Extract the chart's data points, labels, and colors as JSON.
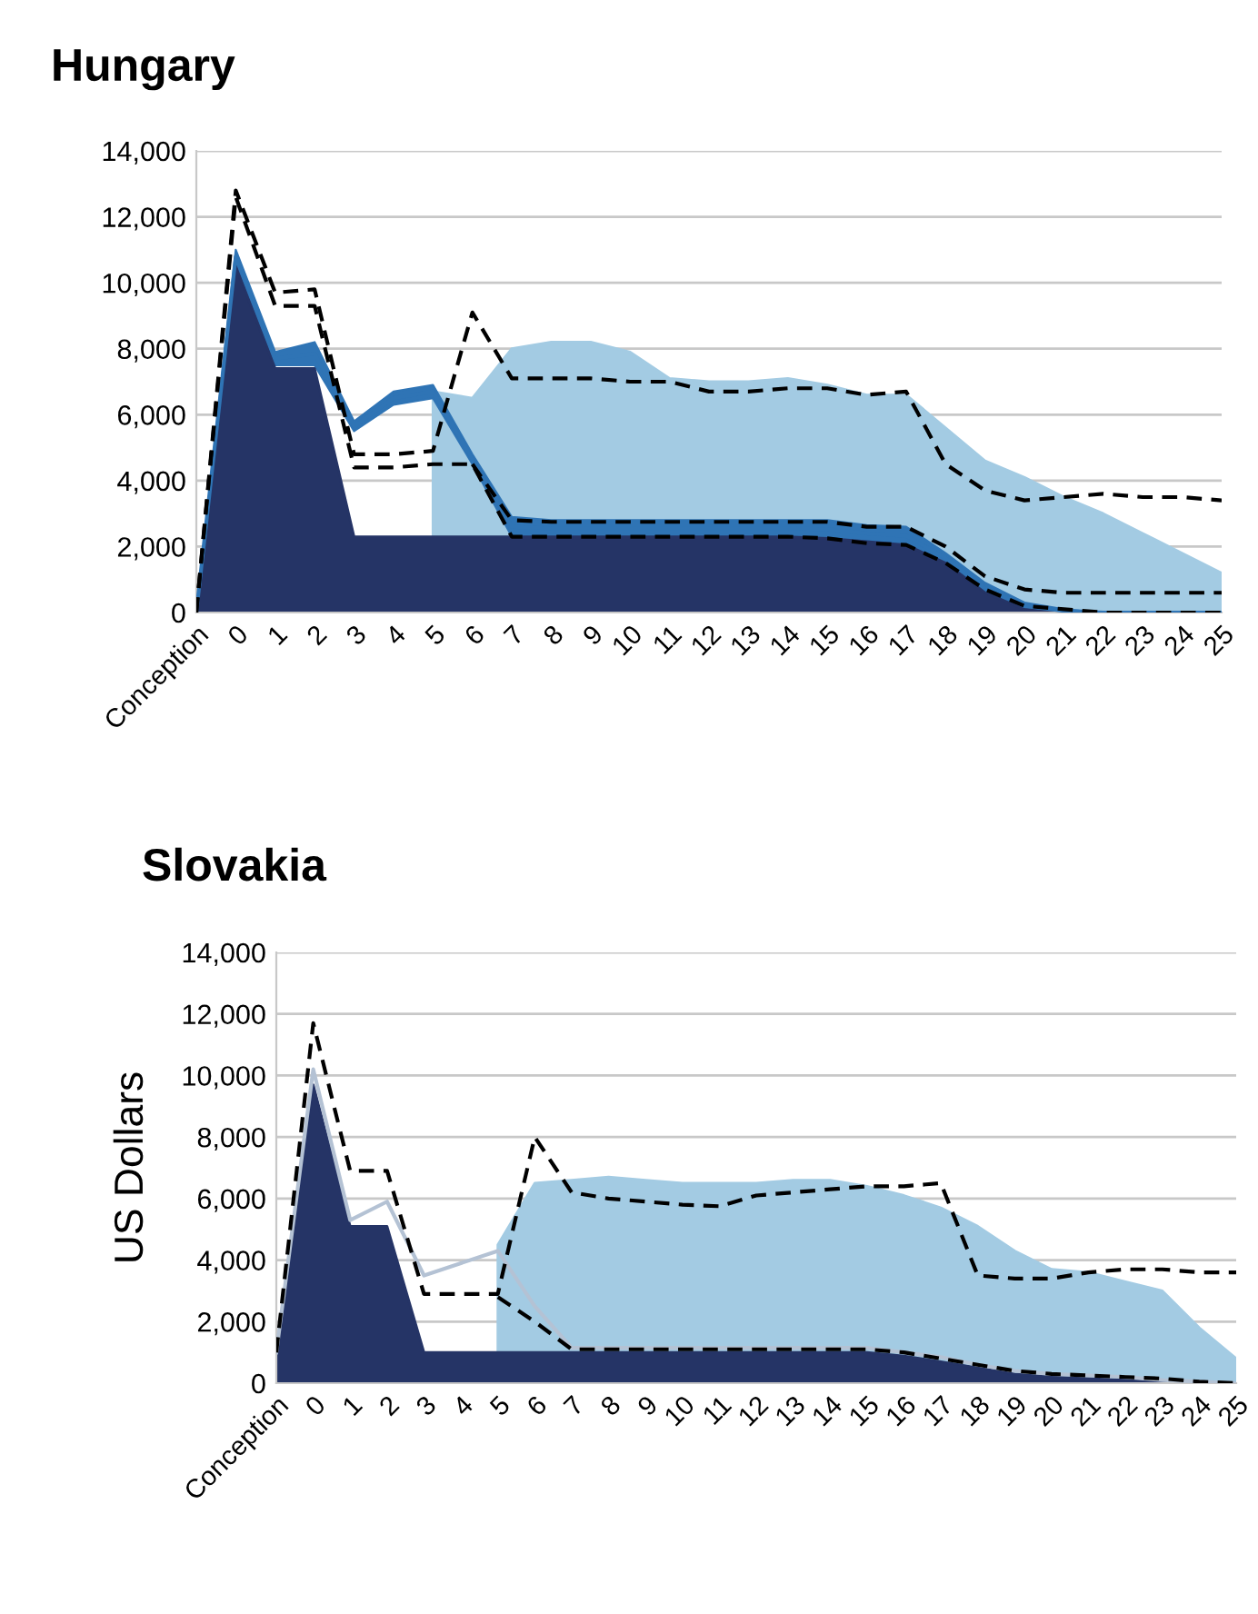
{
  "chart_data": [
    {
      "type": "area",
      "title": "Hungary",
      "categories": [
        "Conception",
        "0",
        "1",
        "2",
        "3",
        "4",
        "5",
        "6",
        "7",
        "8",
        "9",
        "10",
        "11",
        "12",
        "13",
        "14",
        "15",
        "16",
        "17",
        "18",
        "19",
        "20",
        "21",
        "22",
        "23",
        "24",
        "25"
      ],
      "ylim": [
        0,
        14000
      ],
      "yticks": [
        0,
        {
          "value": 2000,
          "label": "2,000"
        },
        {
          "value": 4000,
          "label": "4,000"
        },
        {
          "value": 6000,
          "label": "6,000"
        },
        {
          "value": 8000,
          "label": "8,000"
        },
        {
          "value": 10000,
          "label": "10,000"
        },
        {
          "value": 12000,
          "label": "12,000"
        },
        {
          "value": 14000,
          "label": "14,000"
        }
      ],
      "grid": "y",
      "series": [
        {
          "color": "#a3cbe3",
          "values": [
            null,
            null,
            null,
            null,
            null,
            null,
            6700,
            6500,
            8000,
            8200,
            8200,
            7900,
            7100,
            7000,
            7000,
            7100,
            6900,
            6600,
            6600,
            5600,
            4600,
            4100,
            3500,
            3000,
            2400,
            1800,
            1200
          ]
        },
        {
          "type": "line",
          "color": "#2f74b5",
          "values": [
            0,
            10800,
            7700,
            7850,
            5650,
            6500,
            6700,
            4650,
            2600,
            2550,
            2550,
            2550,
            2550,
            2550,
            2550,
            2550,
            2525,
            2400,
            2325,
            1650,
            750,
            200,
            50,
            0,
            0,
            0,
            0
          ],
          "upper": [
            0,
            11000,
            7900,
            8200,
            5800,
            6700,
            6900,
            4800,
            2900,
            2800,
            2800,
            2800,
            2800,
            2800,
            2800,
            2800,
            2800,
            2650,
            2600,
            1800,
            900,
            300,
            100,
            0,
            0,
            0,
            0
          ],
          "lower": [
            0,
            10600,
            7500,
            7500,
            5500,
            6300,
            6500,
            4500,
            2300,
            2300,
            2300,
            2300,
            2300,
            2300,
            2300,
            2300,
            2250,
            2150,
            2050,
            1500,
            600,
            100,
            0,
            0,
            0,
            0,
            0
          ]
        },
        {
          "color": "#253466",
          "values": [
            0,
            10500,
            7400,
            7400,
            2300,
            2300,
            2300,
            2300,
            2300,
            2300,
            2300,
            2300,
            2300,
            2300,
            2300,
            2300,
            2250,
            2150,
            2050,
            1500,
            600,
            100,
            0,
            0,
            0,
            0,
            0
          ]
        },
        {
          "type": "line",
          "color": "#000000",
          "line_style": "dashed",
          "values": [
            0,
            12800,
            9700,
            9800,
            4800,
            4800,
            4900,
            9100,
            7100,
            7100,
            7100,
            7000,
            7000,
            6700,
            6700,
            6800,
            6800,
            6600,
            6700,
            4500,
            3700,
            3400,
            3500,
            3600,
            3500,
            3500,
            3400
          ]
        },
        {
          "type": "line",
          "color": "#000000",
          "line_style": "dashed",
          "values": [
            0,
            12600,
            9300,
            9300,
            4400,
            4400,
            4500,
            4500,
            2300,
            2300,
            2300,
            2300,
            2300,
            2300,
            2300,
            2300,
            2250,
            2100,
            2050,
            1500,
            700,
            200,
            100,
            0,
            0,
            0,
            0
          ]
        },
        {
          "type": "line",
          "color": "#000000",
          "line_style": "dashed",
          "values": [
            null,
            null,
            null,
            null,
            null,
            null,
            null,
            4500,
            2800,
            2750,
            2750,
            2750,
            2750,
            2750,
            2750,
            2750,
            2750,
            2600,
            2600,
            2000,
            1100,
            700,
            600,
            600,
            600,
            600,
            600
          ]
        }
      ]
    },
    {
      "type": "area",
      "title": "Slovakia",
      "ylabel": "US Dollars",
      "categories": [
        "Conception",
        "0",
        "1",
        "2",
        "3",
        "4",
        "5",
        "6",
        "7",
        "8",
        "9",
        "10",
        "11",
        "12",
        "13",
        "14",
        "15",
        "16",
        "17",
        "18",
        "19",
        "20",
        "21",
        "22",
        "23",
        "24",
        "25"
      ],
      "ylim": [
        0,
        14000
      ],
      "yticks": [
        0,
        {
          "value": 2000,
          "label": "2,000"
        },
        {
          "value": 4000,
          "label": "4,000"
        },
        {
          "value": 6000,
          "label": "6,000"
        },
        {
          "value": 8000,
          "label": "8,000"
        },
        {
          "value": 10000,
          "label": "10,000"
        },
        {
          "value": 12000,
          "label": "12,000"
        },
        {
          "value": 14000,
          "label": "14,000"
        }
      ],
      "grid": "y",
      "series": [
        {
          "color": "#a3cbe3",
          "values": [
            null,
            null,
            null,
            null,
            null,
            null,
            4500,
            6500,
            6600,
            6700,
            6600,
            6500,
            6500,
            6500,
            6600,
            6600,
            6400,
            6100,
            5700,
            5100,
            4300,
            3700,
            3600,
            3300,
            3000,
            1800,
            800
          ]
        },
        {
          "type": "line",
          "color": "#b4c2d4",
          "values": [
            1000,
            10200,
            5300,
            5900,
            3500,
            3900,
            4300,
            2500,
            1150,
            1150,
            1150,
            1150,
            1150,
            1150,
            1150,
            1150,
            1150,
            1000,
            850,
            600,
            400,
            300,
            250,
            200,
            100,
            50,
            0
          ]
        },
        {
          "color": "#253466",
          "values": [
            900,
            9700,
            5100,
            5100,
            1000,
            1000,
            1000,
            1000,
            1000,
            1000,
            1000,
            1000,
            1000,
            1000,
            1000,
            1000,
            1000,
            880,
            700,
            500,
            300,
            200,
            150,
            100,
            50,
            0,
            0
          ]
        },
        {
          "type": "line",
          "color": "#000000",
          "line_style": "dashed",
          "values": [
            1000,
            11700,
            6900,
            6900,
            2900,
            2900,
            2900,
            8000,
            6200,
            6000,
            5900,
            5800,
            5750,
            6100,
            6200,
            6300,
            6400,
            6400,
            6500,
            3500,
            3400,
            3400,
            3600,
            3700,
            3700,
            3600,
            3600
          ]
        },
        {
          "type": "line",
          "color": "#000000",
          "line_style": "dashed",
          "values": [
            null,
            null,
            null,
            null,
            null,
            null,
            2800,
            2000,
            1100,
            1100,
            1100,
            1100,
            1100,
            1100,
            1100,
            1100,
            1100,
            1000,
            800,
            600,
            400,
            300,
            250,
            200,
            150,
            50,
            0
          ]
        }
      ]
    }
  ]
}
